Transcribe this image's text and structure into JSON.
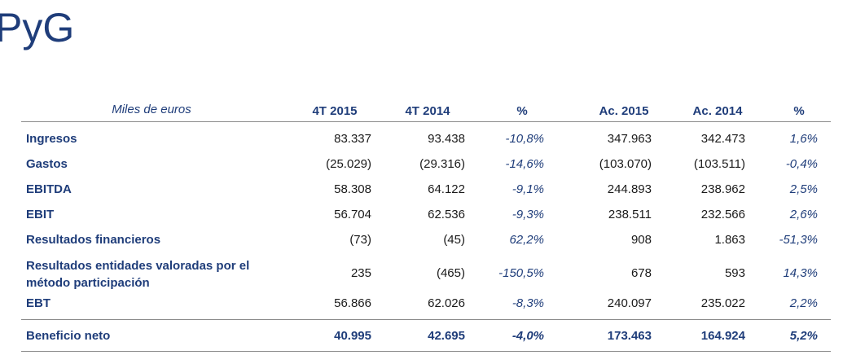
{
  "title": "PyG",
  "table": {
    "header": {
      "units": "Miles de euros",
      "cols": [
        "4T 2015",
        "4T 2014",
        "%",
        "Ac. 2015",
        "Ac. 2014",
        "%"
      ]
    },
    "rows": [
      {
        "label": "Ingresos",
        "v1": "83.337",
        "v2": "93.438",
        "p1": "-10,8%",
        "v3": "347.963",
        "v4": "342.473",
        "p2": "1,6%"
      },
      {
        "label": "Gastos",
        "v1": "(25.029)",
        "v2": "(29.316)",
        "p1": "-14,6%",
        "v3": "(103.070)",
        "v4": "(103.511)",
        "p2": "-0,4%"
      },
      {
        "label": "EBITDA",
        "v1": "58.308",
        "v2": "64.122",
        "p1": "-9,1%",
        "v3": "244.893",
        "v4": "238.962",
        "p2": "2,5%"
      },
      {
        "label": "EBIT",
        "v1": "56.704",
        "v2": "62.536",
        "p1": "-9,3%",
        "v3": "238.511",
        "v4": "232.566",
        "p2": "2,6%"
      },
      {
        "label": "Resultados financieros",
        "v1": "(73)",
        "v2": "(45)",
        "p1": "62,2%",
        "v3": "908",
        "v4": "1.863",
        "p2": "-51,3%"
      },
      {
        "label": "Resultados entidades valoradas por el método participación",
        "v1": "235",
        "v2": "(465)",
        "p1": "-150,5%",
        "v3": "678",
        "v4": "593",
        "p2": "14,3%"
      },
      {
        "label": "EBT",
        "v1": "56.866",
        "v2": "62.026",
        "p1": "-8,3%",
        "v3": "240.097",
        "v4": "235.022",
        "p2": "2,2%"
      }
    ],
    "total": {
      "label": "Beneficio neto",
      "v1": "40.995",
      "v2": "42.695",
      "p1": "-4,0%",
      "v3": "173.463",
      "v4": "164.924",
      "p2": "5,2%"
    }
  }
}
